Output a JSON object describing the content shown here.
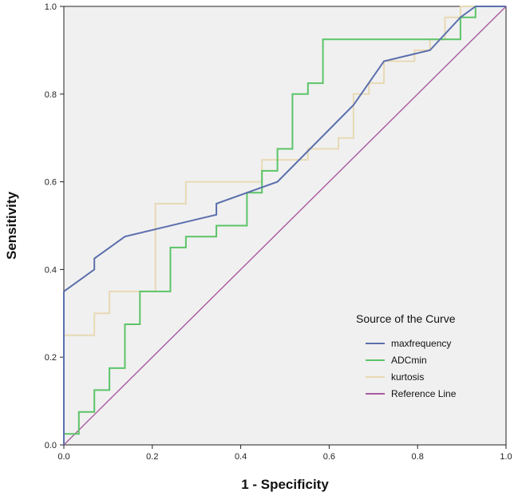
{
  "chart_data": {
    "type": "line",
    "title": "",
    "xlabel": "1 - Specificity",
    "ylabel": "Sensitivity",
    "xlim": [
      0,
      1
    ],
    "ylim": [
      0,
      1
    ],
    "x_ticks": [
      "0.0",
      "0.2",
      "0.4",
      "0.6",
      "0.8",
      "1.0"
    ],
    "y_ticks": [
      "0.0",
      "0.2",
      "0.4",
      "0.6",
      "0.8",
      "1.0"
    ],
    "legend": {
      "title": "Source of the Curve",
      "position": "bottom-right"
    },
    "series": [
      {
        "name": "maxfrequency",
        "color": "#5b6fad",
        "points": [
          [
            0,
            0
          ],
          [
            0,
            0.25
          ],
          [
            0,
            0.35
          ],
          [
            0.069,
            0.4
          ],
          [
            0.069,
            0.425
          ],
          [
            0.138,
            0.475
          ],
          [
            0.345,
            0.525
          ],
          [
            0.345,
            0.55
          ],
          [
            0.483,
            0.6
          ],
          [
            0.655,
            0.775
          ],
          [
            0.724,
            0.875
          ],
          [
            0.828,
            0.9
          ],
          [
            0.897,
            0.975
          ],
          [
            0.931,
            1.0
          ],
          [
            1.0,
            1.0
          ]
        ]
      },
      {
        "name": "ADCmin",
        "color": "#5cc468",
        "points": [
          [
            0,
            0
          ],
          [
            0,
            0.025
          ],
          [
            0.034,
            0.025
          ],
          [
            0.034,
            0.075
          ],
          [
            0.069,
            0.075
          ],
          [
            0.069,
            0.125
          ],
          [
            0.103,
            0.125
          ],
          [
            0.103,
            0.175
          ],
          [
            0.138,
            0.175
          ],
          [
            0.138,
            0.275
          ],
          [
            0.172,
            0.275
          ],
          [
            0.172,
            0.35
          ],
          [
            0.241,
            0.35
          ],
          [
            0.241,
            0.45
          ],
          [
            0.276,
            0.45
          ],
          [
            0.276,
            0.475
          ],
          [
            0.345,
            0.475
          ],
          [
            0.345,
            0.5
          ],
          [
            0.414,
            0.5
          ],
          [
            0.414,
            0.575
          ],
          [
            0.448,
            0.575
          ],
          [
            0.448,
            0.625
          ],
          [
            0.483,
            0.625
          ],
          [
            0.483,
            0.675
          ],
          [
            0.517,
            0.675
          ],
          [
            0.517,
            0.8
          ],
          [
            0.552,
            0.8
          ],
          [
            0.552,
            0.825
          ],
          [
            0.586,
            0.825
          ],
          [
            0.586,
            0.925
          ],
          [
            0.897,
            0.925
          ],
          [
            0.897,
            0.975
          ],
          [
            0.931,
            0.975
          ],
          [
            0.931,
            1.0
          ],
          [
            1.0,
            1.0
          ]
        ]
      },
      {
        "name": "kurtosis",
        "color": "#e8d9b4",
        "points": [
          [
            0,
            0
          ],
          [
            0,
            0.25
          ],
          [
            0.069,
            0.25
          ],
          [
            0.069,
            0.3
          ],
          [
            0.103,
            0.3
          ],
          [
            0.103,
            0.35
          ],
          [
            0.207,
            0.35
          ],
          [
            0.207,
            0.55
          ],
          [
            0.276,
            0.55
          ],
          [
            0.276,
            0.6
          ],
          [
            0.448,
            0.6
          ],
          [
            0.448,
            0.65
          ],
          [
            0.552,
            0.65
          ],
          [
            0.552,
            0.675
          ],
          [
            0.621,
            0.675
          ],
          [
            0.621,
            0.7
          ],
          [
            0.655,
            0.7
          ],
          [
            0.655,
            0.8
          ],
          [
            0.69,
            0.8
          ],
          [
            0.69,
            0.825
          ],
          [
            0.724,
            0.825
          ],
          [
            0.724,
            0.875
          ],
          [
            0.793,
            0.875
          ],
          [
            0.793,
            0.9
          ],
          [
            0.828,
            0.9
          ],
          [
            0.828,
            0.925
          ],
          [
            0.862,
            0.925
          ],
          [
            0.862,
            0.975
          ],
          [
            0.897,
            0.975
          ],
          [
            0.897,
            1.0
          ],
          [
            1.0,
            1.0
          ]
        ]
      },
      {
        "name": "Reference Line",
        "color": "#a85aa0",
        "points": [
          [
            0,
            0
          ],
          [
            1,
            1
          ]
        ]
      }
    ]
  }
}
